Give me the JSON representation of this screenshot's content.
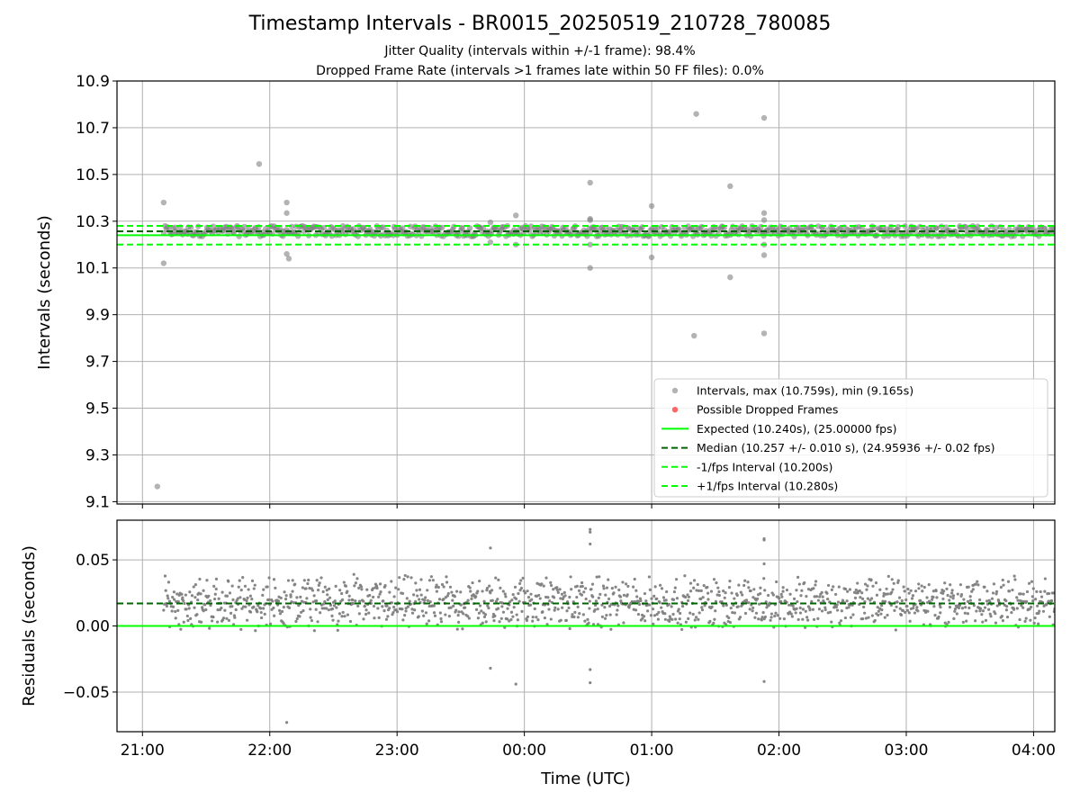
{
  "title": "Timestamp Intervals - BR0015_20250519_210728_780085",
  "subtitle1": "Jitter Quality (intervals within +/-1 frame): 98.4%",
  "subtitle2": "Dropped Frame Rate (intervals >1 frames late within 50 FF files): 0.0%",
  "colors": {
    "points": "#808080",
    "dropped": "#ff0000",
    "expected": "#00ff00",
    "median": "#006400",
    "interval_band": "#00ff00"
  },
  "chart_data": [
    {
      "type": "scatter",
      "xlabel": "",
      "ylabel": "Intervals (seconds)",
      "xlim": [
        "20:48",
        "04:10"
      ],
      "ylim": [
        9.09,
        10.9
      ],
      "yticks": [
        "9.1",
        "9.3",
        "9.5",
        "9.7",
        "9.9",
        "10.1",
        "10.3",
        "10.5",
        "10.7",
        "10.9"
      ],
      "grid": true,
      "legend_position": "lower-right",
      "legend": [
        "Intervals, max (10.759s), min (9.165s)",
        "Possible Dropped Frames",
        "Expected (10.240s), (25.00000 fps)",
        "Median (10.257 +/- 0.010 s), (24.95936 +/- 0.02 fps)",
        "-1/fps Interval (10.200s)",
        "+1/fps Interval (10.280s)"
      ],
      "reference_lines": {
        "expected": 10.24,
        "median": 10.257,
        "minus_1fps": 10.2,
        "plus_1fps": 10.28
      },
      "data_range": [
        "21:07",
        "04:10"
      ],
      "typical_band": [
        10.235,
        10.28
      ],
      "outliers": [
        {
          "x": "21:07",
          "y": 9.165
        },
        {
          "x": "21:10",
          "y": 10.38
        },
        {
          "x": "21:10",
          "y": 10.12
        },
        {
          "x": "21:55",
          "y": 10.545
        },
        {
          "x": "22:08",
          "y": 10.38
        },
        {
          "x": "22:08",
          "y": 10.335
        },
        {
          "x": "22:08",
          "y": 10.16
        },
        {
          "x": "22:09",
          "y": 10.14
        },
        {
          "x": "23:44",
          "y": 10.295
        },
        {
          "x": "23:44",
          "y": 10.21
        },
        {
          "x": "23:56",
          "y": 10.325
        },
        {
          "x": "23:56",
          "y": 10.2
        },
        {
          "x": "00:31",
          "y": 10.465
        },
        {
          "x": "00:31",
          "y": 10.31
        },
        {
          "x": "00:31",
          "y": 10.305
        },
        {
          "x": "00:31",
          "y": 10.2
        },
        {
          "x": "00:31",
          "y": 10.1
        },
        {
          "x": "01:00",
          "y": 10.365
        },
        {
          "x": "01:00",
          "y": 10.145
        },
        {
          "x": "01:21",
          "y": 10.759
        },
        {
          "x": "01:20",
          "y": 9.81
        },
        {
          "x": "01:37",
          "y": 10.45
        },
        {
          "x": "01:37",
          "y": 10.06
        },
        {
          "x": "01:53",
          "y": 10.742
        },
        {
          "x": "01:53",
          "y": 10.335
        },
        {
          "x": "01:53",
          "y": 10.305
        },
        {
          "x": "01:53",
          "y": 10.2
        },
        {
          "x": "01:53",
          "y": 10.155
        },
        {
          "x": "01:53",
          "y": 9.82
        }
      ]
    },
    {
      "type": "scatter",
      "xlabel": "Time (UTC)",
      "ylabel": "Residuals (seconds)",
      "xlim": [
        "20:48",
        "04:10"
      ],
      "ylim": [
        -0.08,
        0.08
      ],
      "xticks": [
        "21:00",
        "22:00",
        "23:00",
        "00:00",
        "01:00",
        "02:00",
        "03:00",
        "04:00"
      ],
      "yticks": [
        "−0.05",
        "0.00",
        "0.05"
      ],
      "grid": true,
      "reference_lines": {
        "expected": 0.0,
        "median": 0.017
      },
      "typical_band": [
        -0.005,
        0.04
      ],
      "outliers": [
        {
          "x": "22:08",
          "y": -0.073
        },
        {
          "x": "23:44",
          "y": 0.059
        },
        {
          "x": "23:44",
          "y": -0.032
        },
        {
          "x": "23:56",
          "y": -0.044
        },
        {
          "x": "00:31",
          "y": 0.073
        },
        {
          "x": "00:31",
          "y": 0.071
        },
        {
          "x": "00:31",
          "y": 0.062
        },
        {
          "x": "00:31",
          "y": -0.033
        },
        {
          "x": "00:31",
          "y": -0.043
        },
        {
          "x": "01:53",
          "y": 0.066
        },
        {
          "x": "01:53",
          "y": 0.065
        },
        {
          "x": "01:53",
          "y": 0.047
        },
        {
          "x": "01:53",
          "y": -0.042
        }
      ]
    }
  ]
}
